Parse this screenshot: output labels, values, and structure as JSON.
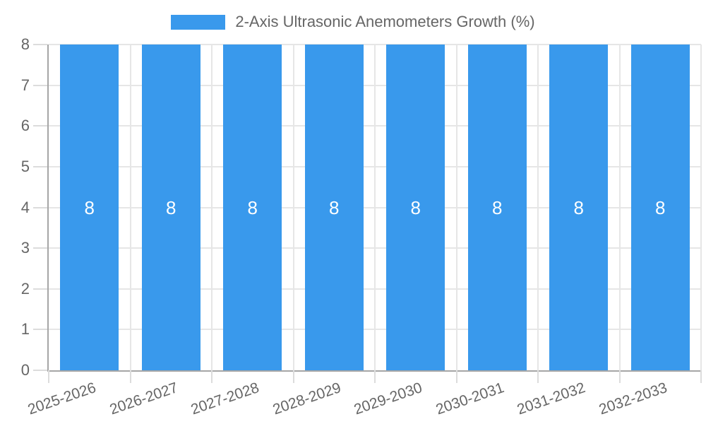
{
  "chart_data": {
    "type": "bar",
    "title": "2-Axis Ultrasonic Anemometers Growth (%)",
    "legend": {
      "position": "top-center",
      "entries": [
        {
          "label": "2-Axis Ultrasonic Anemometers Growth (%)",
          "swatch_color": "#3999EC"
        }
      ]
    },
    "categories": [
      "2025-2026",
      "2026-2027",
      "2027-2028",
      "2028-2029",
      "2029-2030",
      "2030-2031",
      "2031-2032",
      "2032-2033"
    ],
    "series": [
      {
        "name": "2-Axis Ultrasonic Anemometers Growth (%)",
        "values": [
          8,
          8,
          8,
          8,
          8,
          8,
          8,
          8
        ]
      }
    ],
    "bar_value_labels": [
      "8",
      "8",
      "8",
      "8",
      "8",
      "8",
      "8",
      "8"
    ],
    "xlabel": "",
    "ylabel": "",
    "ylim": [
      0,
      8
    ],
    "yticks": [
      0,
      1,
      2,
      3,
      4,
      5,
      6,
      7,
      8
    ],
    "grid": true,
    "x_label_rotation_deg": -19,
    "colors": {
      "bar": "#3999EC",
      "bar_value_label": "#ffffff",
      "axis_text": "#666666",
      "legend_text": "#666666",
      "grid_line": "#e6e6e6",
      "axis_line": "#a6a6a6",
      "tick_mark": "#dcdcdc",
      "background": "#ffffff"
    }
  }
}
